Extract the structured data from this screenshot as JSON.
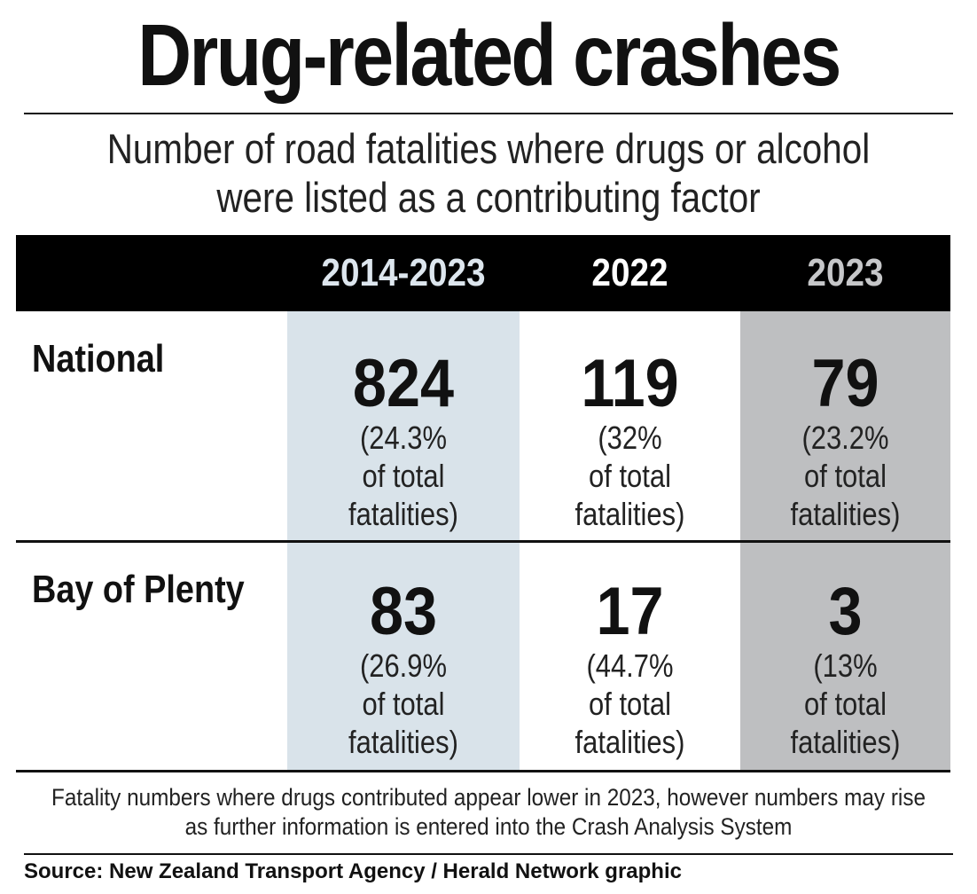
{
  "title": "Drug-related crashes",
  "subtitle": "Number of road fatalities where drugs or alcohol were listed as a contributing factor",
  "colors": {
    "header_bg": "#000000",
    "header_text": "#ffffff",
    "col_2014_2023_bg": "#d9e3ea",
    "col_2023_bg": "#bebfc1",
    "header_2014_2023_text": "#dde6ee",
    "header_2023_text": "#c6c7c9",
    "rule": "#111111"
  },
  "chart_data": {
    "type": "table",
    "columns": [
      "2014-2023",
      "2022",
      "2023"
    ],
    "rows": [
      {
        "label": "National",
        "cells": [
          {
            "value": "824",
            "note_line1": "(24.3%",
            "note_line2": "of total",
            "note_line3": "fatalities)"
          },
          {
            "value": "119",
            "note_line1": "(32%",
            "note_line2": "of total",
            "note_line3": "fatalities)"
          },
          {
            "value": "79",
            "note_line1": "(23.2%",
            "note_line2": "of total",
            "note_line3": "fatalities)"
          }
        ]
      },
      {
        "label": "Bay of Plenty",
        "cells": [
          {
            "value": "83",
            "note_line1": "(26.9%",
            "note_line2": "of total",
            "note_line3": "fatalities)"
          },
          {
            "value": "17",
            "note_line1": "(44.7%",
            "note_line2": "of total",
            "note_line3": "fatalities)"
          },
          {
            "value": "3",
            "note_line1": "(13%",
            "note_line2": "of total",
            "note_line3": "fatalities)"
          }
        ]
      }
    ]
  },
  "footnote": "Fatality numbers where drugs contributed appear lower in 2023, however numbers may rise as further information is entered into the Crash Analysis System",
  "source": "Source: New Zealand Transport Agency / Herald Network graphic"
}
